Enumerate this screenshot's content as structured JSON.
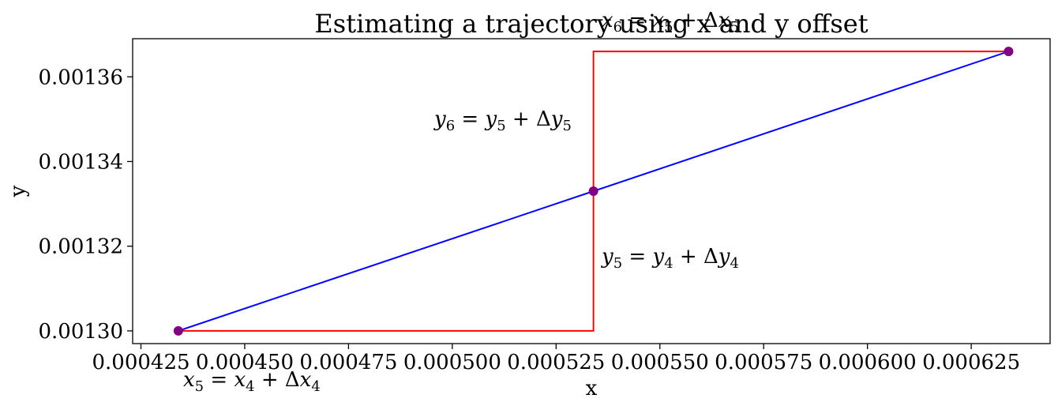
{
  "chart_data": {
    "type": "line",
    "title": "Estimating a trajectory using x and y offset",
    "xlabel": "x",
    "ylabel": "y",
    "xlim": [
      0.000423,
      0.000644
    ],
    "ylim": [
      0.001297,
      0.001369
    ],
    "grid": false,
    "x_ticks": [
      0.000425,
      0.00045,
      0.000475,
      0.0005,
      0.000525,
      0.00055,
      0.000575,
      0.0006,
      0.000625
    ],
    "x_tick_labels": [
      "0.000425",
      "0.000450",
      "0.000475",
      "0.000500",
      "0.000525",
      "0.000550",
      "0.000575",
      "0.000600",
      "0.000625"
    ],
    "y_ticks": [
      0.0013,
      0.00132,
      0.00134,
      0.00136
    ],
    "y_tick_labels": [
      "0.00130",
      "0.00132",
      "0.00134",
      "0.00136"
    ],
    "series": [
      {
        "role": "trajectory",
        "color": "#0000ff",
        "points": [
          [
            0.000434,
            0.0013
          ],
          [
            0.000534,
            0.001333
          ],
          [
            0.000634,
            0.001366
          ]
        ]
      },
      {
        "role": "offsets",
        "color": "#ff0000",
        "points": [
          [
            0.000434,
            0.0013
          ],
          [
            0.000534,
            0.0013
          ],
          [
            0.000534,
            0.001366
          ],
          [
            0.000634,
            0.001366
          ]
        ]
      }
    ],
    "markers": {
      "color": "#800080",
      "points": [
        [
          0.000434,
          0.0013
        ],
        [
          0.000534,
          0.001333
        ],
        [
          0.000634,
          0.001366
        ]
      ]
    },
    "annotations": [
      {
        "id": "x5",
        "base": "x",
        "sub": "5",
        "rhs_base": "x",
        "rhs_sub": "4"
      },
      {
        "id": "x6",
        "base": "x",
        "sub": "6",
        "rhs_base": "x",
        "rhs_sub": "5"
      },
      {
        "id": "y5",
        "base": "y",
        "sub": "5",
        "rhs_base": "y",
        "rhs_sub": "4"
      },
      {
        "id": "y6",
        "base": "y",
        "sub": "6",
        "rhs_base": "y",
        "rhs_sub": "5"
      }
    ]
  }
}
